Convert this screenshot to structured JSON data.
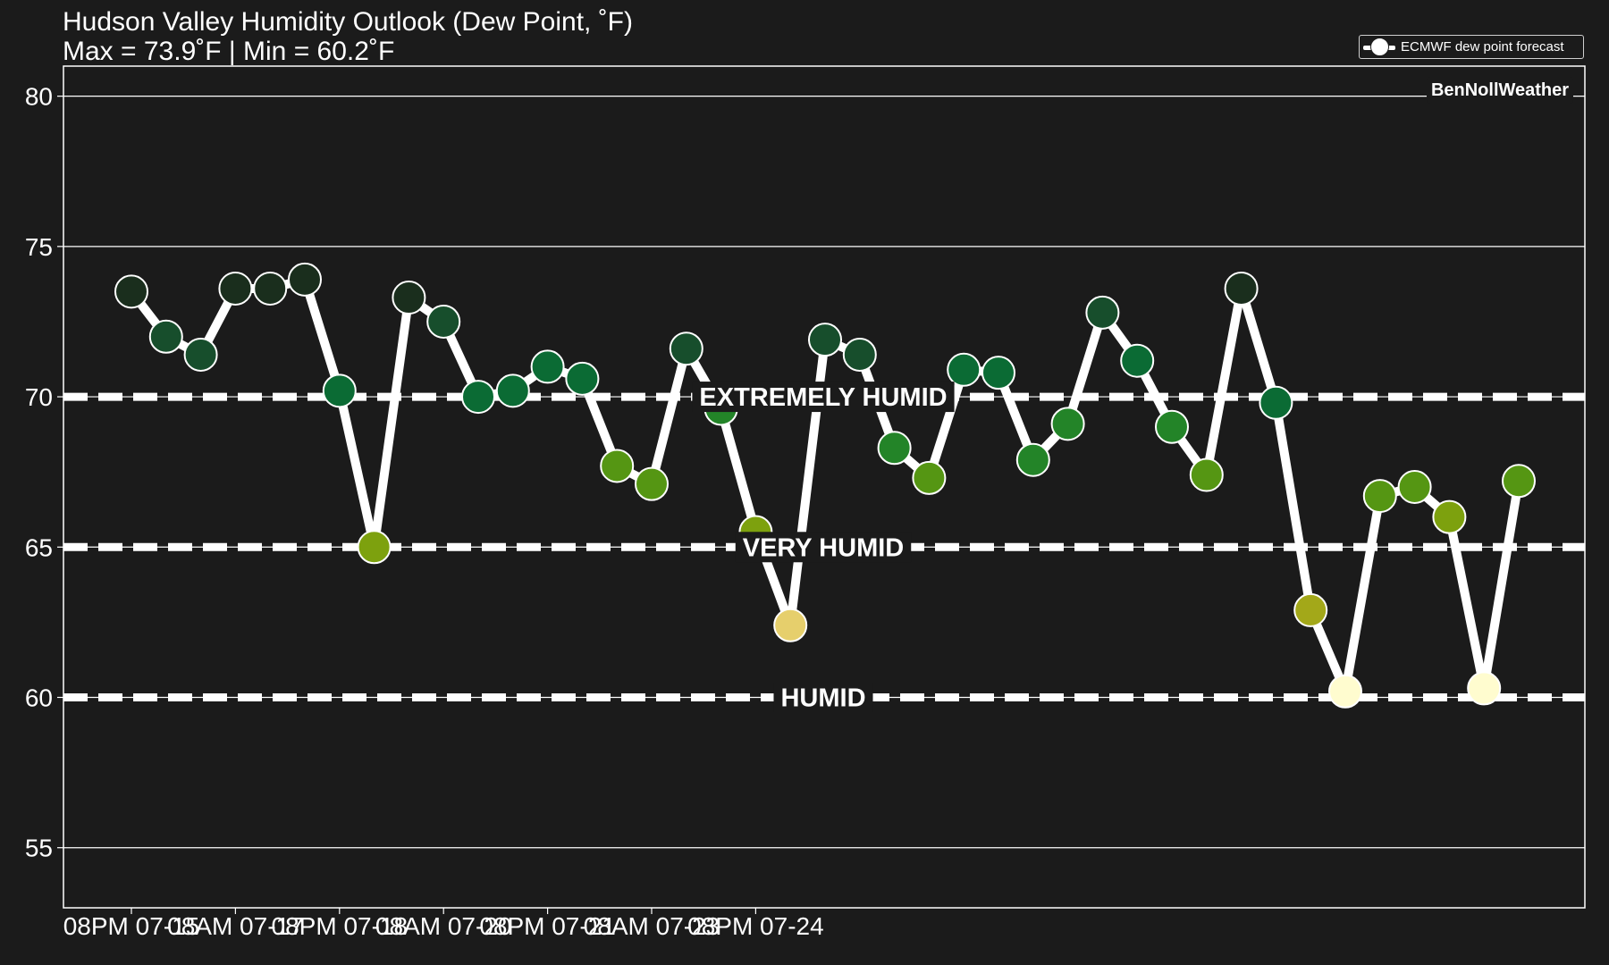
{
  "title": {
    "line1": "Hudson Valley Humidity Outlook (Dew Point, ˚F)",
    "line2": "Max = 73.9˚F | Min = 60.2˚F"
  },
  "legend": {
    "label": "ECMWF dew point forecast"
  },
  "watermark": "BenNollWeather",
  "colors": {
    "background": "#1b1b1b",
    "line": "#ffffff",
    "marker_scale": [
      "#fffccf",
      "#e6cf6c",
      "#a3a819",
      "#7da10e",
      "#559613",
      "#238428",
      "#0b6b34",
      "#174e2c",
      "#1a2e1d"
    ]
  },
  "chart_data": {
    "type": "line",
    "x_tick_labels": [
      "08PM 07-15",
      "08AM 07-17",
      "08PM 07-18",
      "08AM 07-20",
      "08PM 07-21",
      "08AM 07-23",
      "08PM 07-24"
    ],
    "x_tick_index": [
      0,
      3,
      6,
      9,
      12,
      15,
      18
    ],
    "x_step_hours": 12,
    "ylim": [
      53,
      81
    ],
    "y_ticks": [
      55,
      60,
      65,
      70,
      75,
      80
    ],
    "grid": true,
    "legend_position": "top-right",
    "thresholds": [
      {
        "value": 70,
        "label": "EXTREMELY HUMID"
      },
      {
        "value": 65,
        "label": "VERY HUMID"
      },
      {
        "value": 60,
        "label": "HUMID"
      }
    ],
    "series": [
      {
        "name": "ECMWF dew point forecast",
        "values": [
          73.5,
          72.0,
          71.4,
          73.6,
          73.6,
          73.9,
          70.2,
          65.0,
          73.3,
          72.5,
          70.0,
          70.2,
          71.0,
          70.6,
          67.7,
          67.1,
          71.6,
          69.6,
          65.5,
          62.4,
          71.9,
          71.4,
          68.3,
          67.3,
          70.9,
          70.8,
          67.9,
          69.1,
          72.8,
          71.2,
          69.0,
          67.4,
          73.6,
          69.8,
          62.9,
          60.2,
          66.7,
          67.0,
          66.0,
          60.3,
          67.2
        ]
      }
    ]
  }
}
